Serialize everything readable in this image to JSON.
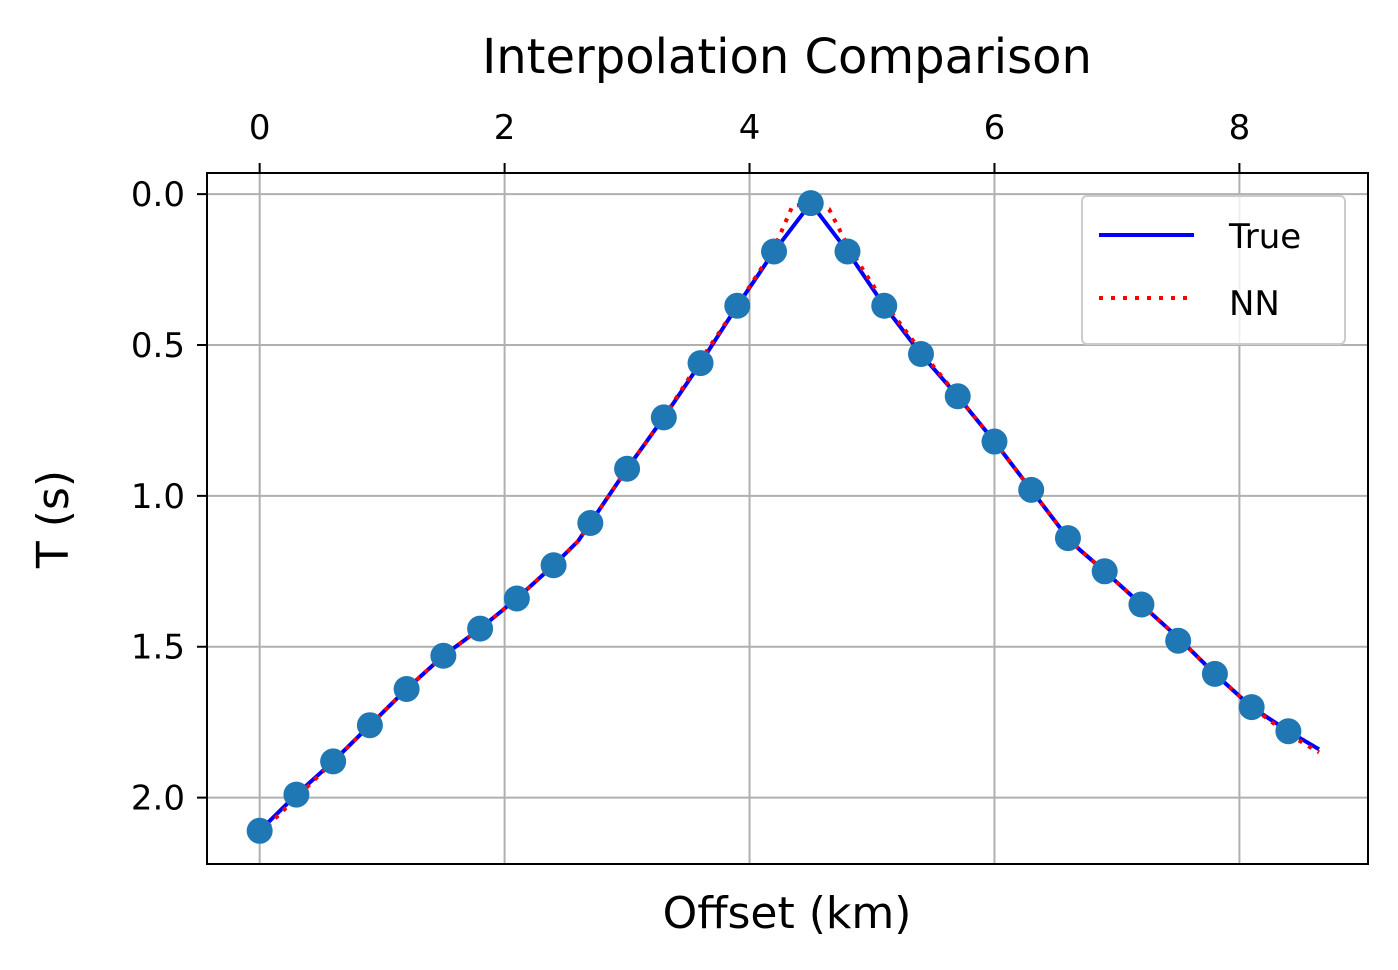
{
  "chart_data": {
    "type": "line",
    "title": "Interpolation Comparison",
    "xlabel": "Offset (km)",
    "ylabel": "T (s)",
    "x_axis_position": "top",
    "y_axis_inverted": true,
    "xlim": [
      -0.43,
      9.05
    ],
    "ylim": [
      2.22,
      -0.07
    ],
    "x_ticks": [
      0,
      2,
      4,
      6,
      8
    ],
    "x_tick_labels": [
      "0",
      "2",
      "4",
      "6",
      "8"
    ],
    "y_ticks": [
      0.0,
      0.5,
      1.0,
      1.5,
      2.0
    ],
    "y_tick_labels": [
      "0.0",
      "0.5",
      "1.0",
      "1.5",
      "2.0"
    ],
    "grid": true,
    "legend": {
      "position": "top-right",
      "entries": [
        "True",
        "NN"
      ]
    },
    "colors": {
      "true": "#0000ff",
      "nn": "#ff0000",
      "samples": "#1f77b4",
      "grid": "#b0b0b0"
    },
    "series": [
      {
        "name": "True",
        "style": "solid",
        "x": [
          0,
          0.3,
          0.6,
          0.9,
          1.2,
          1.5,
          1.8,
          2.1,
          2.4,
          2.6,
          2.7,
          3.0,
          3.3,
          3.6,
          3.9,
          4.2,
          4.5,
          4.8,
          5.1,
          5.4,
          5.7,
          6.0,
          6.3,
          6.6,
          6.7,
          6.9,
          7.2,
          7.5,
          7.8,
          8.1,
          8.4,
          8.65
        ],
        "y": [
          2.11,
          1.99,
          1.88,
          1.76,
          1.64,
          1.53,
          1.44,
          1.34,
          1.23,
          1.15,
          1.09,
          0.91,
          0.74,
          0.56,
          0.37,
          0.19,
          0.03,
          0.19,
          0.37,
          0.53,
          0.67,
          0.82,
          0.98,
          1.14,
          1.18,
          1.25,
          1.36,
          1.47,
          1.59,
          1.7,
          1.78,
          1.84
        ]
      },
      {
        "name": "NN",
        "style": "dotted",
        "x": [
          0,
          0.3,
          0.6,
          0.9,
          1.2,
          1.5,
          1.8,
          2.1,
          2.4,
          2.6,
          2.7,
          3.0,
          3.3,
          3.6,
          3.9,
          4.2,
          4.35,
          4.5,
          4.65,
          4.8,
          5.1,
          5.4,
          5.7,
          6.0,
          6.3,
          6.6,
          6.7,
          6.9,
          7.2,
          7.5,
          7.8,
          8.1,
          8.4,
          8.65
        ],
        "y": [
          2.12,
          2.0,
          1.88,
          1.76,
          1.64,
          1.53,
          1.44,
          1.34,
          1.23,
          1.15,
          1.09,
          0.91,
          0.74,
          0.55,
          0.37,
          0.18,
          0.04,
          0.03,
          0.05,
          0.17,
          0.36,
          0.52,
          0.67,
          0.82,
          0.98,
          1.14,
          1.18,
          1.25,
          1.36,
          1.47,
          1.59,
          1.7,
          1.79,
          1.85
        ]
      },
      {
        "name": "",
        "style": "scatter",
        "x": [
          0,
          0.3,
          0.6,
          0.9,
          1.2,
          1.5,
          1.8,
          2.1,
          2.4,
          2.7,
          3.0,
          3.3,
          3.6,
          3.9,
          4.2,
          4.5,
          4.8,
          5.1,
          5.4,
          5.7,
          6.0,
          6.3,
          6.6,
          6.9,
          7.2,
          7.5,
          7.8,
          8.1,
          8.4
        ],
        "y": [
          2.11,
          1.99,
          1.88,
          1.76,
          1.64,
          1.53,
          1.44,
          1.34,
          1.23,
          1.09,
          0.91,
          0.74,
          0.56,
          0.37,
          0.19,
          0.03,
          0.19,
          0.37,
          0.53,
          0.67,
          0.82,
          0.98,
          1.14,
          1.25,
          1.36,
          1.48,
          1.59,
          1.7,
          1.78
        ]
      }
    ]
  }
}
